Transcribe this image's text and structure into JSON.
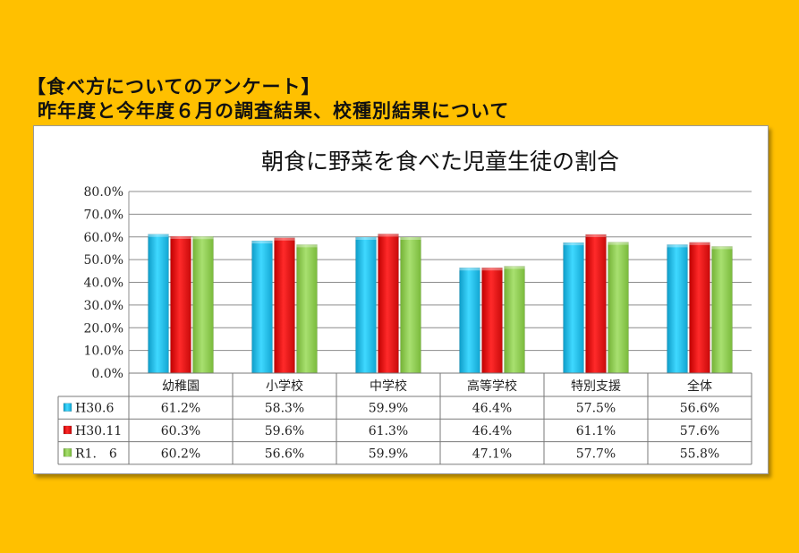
{
  "heading": {
    "line1": "【食べ方についてのアンケート】",
    "line2": "昨年度と今年度６月の調査結果、校種別結果について"
  },
  "chart_data": {
    "type": "bar",
    "title": "朝食に野菜を食べた児童生徒の割合",
    "categories": [
      "幼稚園",
      "小学校",
      "中学校",
      "高等学校",
      "特別支援",
      "全体"
    ],
    "ylim": [
      0,
      80
    ],
    "yticks": [
      "80.0%",
      "70.0%",
      "60.0%",
      "50.0%",
      "40.0%",
      "30.0%",
      "20.0%",
      "10.0%",
      "0.0%"
    ],
    "grid": true,
    "legend": "data-table-left",
    "series": [
      {
        "name": "H30.6",
        "color": "#1EC8F0",
        "values": [
          61.2,
          58.3,
          59.9,
          46.4,
          57.5,
          56.6
        ],
        "labels": [
          "61.2%",
          "58.3%",
          "59.9%",
          "46.4%",
          "57.5%",
          "56.6%"
        ]
      },
      {
        "name": "H30.11",
        "color": "#F01414",
        "values": [
          60.3,
          59.6,
          61.3,
          46.4,
          61.1,
          57.6
        ],
        "labels": [
          "60.3%",
          "59.6%",
          "61.3%",
          "46.4%",
          "61.1%",
          "57.6%"
        ]
      },
      {
        "name": "R1.　6",
        "color": "#92D050",
        "values": [
          60.2,
          56.6,
          59.9,
          47.1,
          57.7,
          55.8
        ],
        "labels": [
          "60.2%",
          "56.6%",
          "59.9%",
          "47.1%",
          "57.7%",
          "55.8%"
        ]
      }
    ]
  }
}
